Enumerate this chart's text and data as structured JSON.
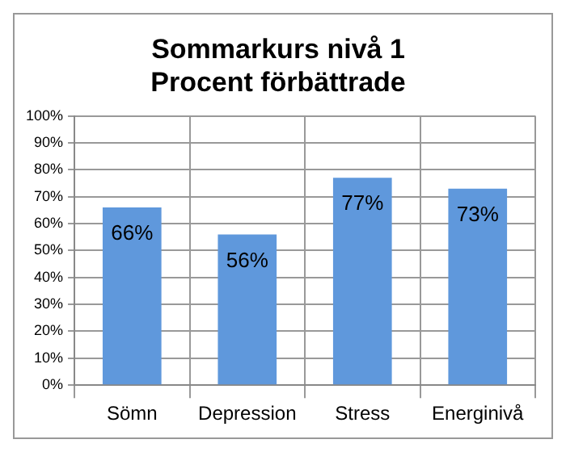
{
  "chart_data": {
    "type": "bar",
    "title": "Sommarkurs nivå 1\nProcent förbättrade",
    "categories": [
      "Sömn",
      "Depression",
      "Stress",
      "Energinivå"
    ],
    "values": [
      66,
      56,
      77,
      73
    ],
    "color": "#5f98dc",
    "ylim": [
      0,
      100
    ],
    "yticks": [
      {
        "value": 0,
        "label": "0%"
      },
      {
        "value": 10,
        "label": "10%"
      },
      {
        "value": 20,
        "label": "20%"
      },
      {
        "value": 30,
        "label": "30%"
      },
      {
        "value": 40,
        "label": "40%"
      },
      {
        "value": 50,
        "label": "50%"
      },
      {
        "value": 60,
        "label": "60%"
      },
      {
        "value": 70,
        "label": "70%"
      },
      {
        "value": 80,
        "label": "80%"
      },
      {
        "value": 90,
        "label": "90%"
      },
      {
        "value": 100,
        "label": "100%"
      }
    ],
    "value_labels": [
      "66%",
      "56%",
      "77%",
      "73%"
    ],
    "grid": true
  }
}
